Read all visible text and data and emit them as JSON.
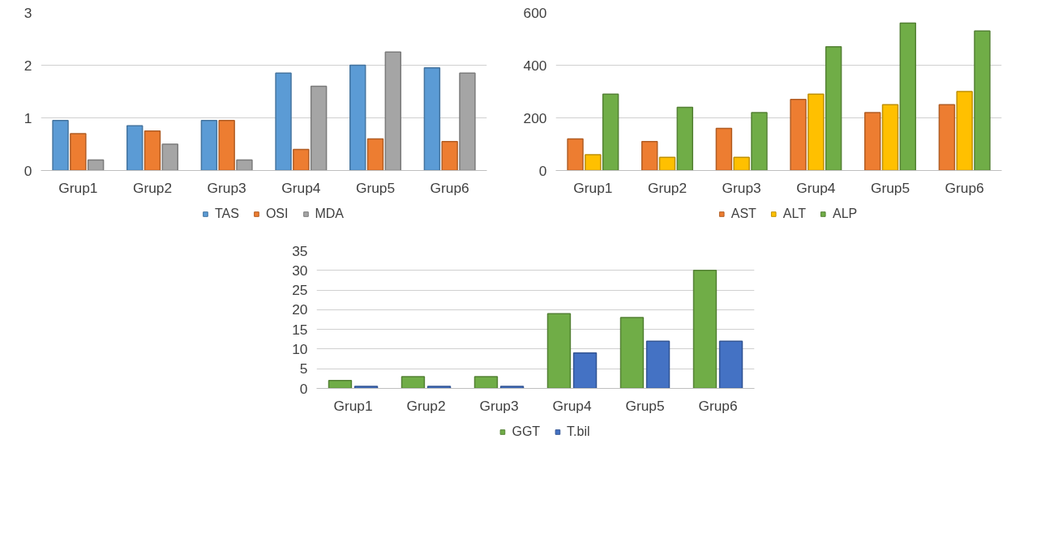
{
  "chart_data": [
    {
      "type": "bar",
      "categories": [
        "Grup1",
        "Grup2",
        "Grup3",
        "Grup4",
        "Grup5",
        "Grup6"
      ],
      "ylim": [
        0,
        3
      ],
      "yticks": [
        0,
        1,
        2,
        3
      ],
      "grid": "y",
      "legend": "bottom",
      "series": [
        {
          "name": "TAS",
          "color": "#5b9bd5",
          "values": [
            0.95,
            0.85,
            0.95,
            1.85,
            2.0,
            1.95
          ]
        },
        {
          "name": "OSI",
          "color": "#ed7d31",
          "values": [
            0.7,
            0.75,
            0.95,
            0.4,
            0.6,
            0.55
          ]
        },
        {
          "name": "MDA",
          "color": "#a5a5a5",
          "values": [
            0.2,
            0.5,
            0.2,
            1.6,
            2.25,
            1.85
          ]
        }
      ]
    },
    {
      "type": "bar",
      "categories": [
        "Grup1",
        "Grup2",
        "Grup3",
        "Grup4",
        "Grup5",
        "Grup6"
      ],
      "ylim": [
        0,
        600
      ],
      "yticks": [
        0,
        200,
        400,
        600
      ],
      "grid": "y",
      "legend": "bottom",
      "series": [
        {
          "name": "AST",
          "color": "#ed7d31",
          "values": [
            120,
            110,
            160,
            270,
            220,
            250
          ]
        },
        {
          "name": "ALT",
          "color": "#ffc000",
          "values": [
            60,
            50,
            50,
            290,
            250,
            300
          ]
        },
        {
          "name": "ALP",
          "color": "#70ad47",
          "values": [
            290,
            240,
            220,
            470,
            560,
            530
          ]
        }
      ]
    },
    {
      "type": "bar",
      "categories": [
        "Grup1",
        "Grup2",
        "Grup3",
        "Grup4",
        "Grup5",
        "Grup6"
      ],
      "ylim": [
        0,
        35
      ],
      "yticks": [
        0,
        5,
        10,
        15,
        20,
        25,
        30,
        35
      ],
      "grid": "y",
      "legend": "bottom",
      "series": [
        {
          "name": "GGT",
          "color": "#70ad47",
          "values": [
            2,
            3,
            3,
            19,
            18,
            30
          ]
        },
        {
          "name": "T.bil",
          "color": "#4472c4",
          "values": [
            0.5,
            0.5,
            0.5,
            9,
            12,
            12
          ]
        }
      ]
    }
  ]
}
